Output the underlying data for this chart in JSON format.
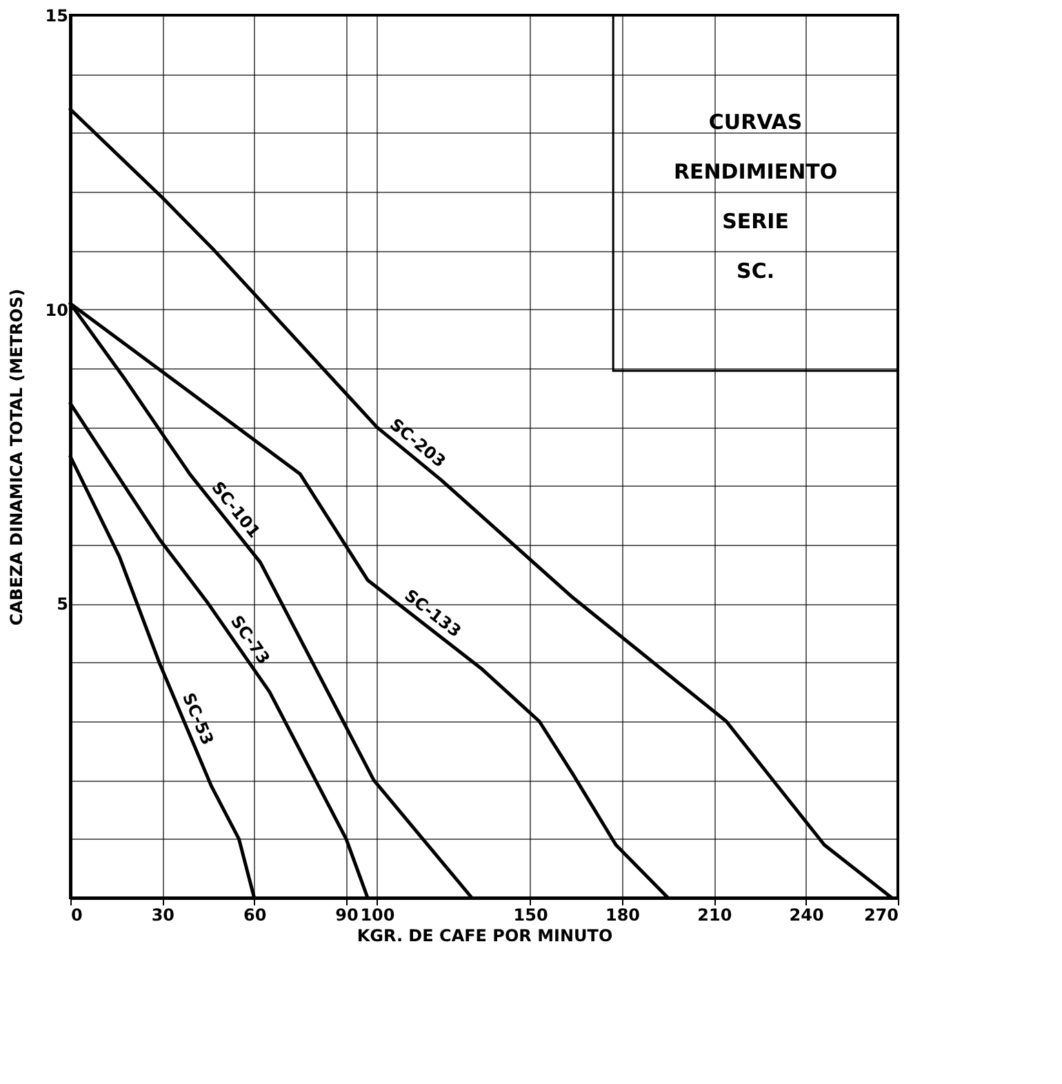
{
  "chart_data": {
    "type": "line",
    "title": [
      "CURVAS",
      "RENDIMIENTO",
      "SERIE",
      "SC."
    ],
    "xlabel": "KGR. DE CAFE POR MINUTO",
    "ylabel": "CABEZA DINAMICA TOTAL (METROS)",
    "xlim": [
      0,
      270
    ],
    "xticks": [
      0,
      30,
      60,
      90,
      100,
      150,
      180,
      210,
      240,
      270
    ],
    "ylim": [
      0,
      15
    ],
    "yticks": [
      {
        "value": 0,
        "label": null
      },
      {
        "value": 1,
        "label": null
      },
      {
        "value": 2,
        "label": null
      },
      {
        "value": 3,
        "label": null
      },
      {
        "value": 4,
        "label": null
      },
      5,
      {
        "value": 6,
        "label": null
      },
      {
        "value": 7,
        "label": null
      },
      {
        "value": 8,
        "label": null
      },
      {
        "value": 9,
        "label": null
      },
      10,
      {
        "value": 11,
        "label": null
      },
      {
        "value": 12,
        "label": null
      },
      {
        "value": 13,
        "label": null
      },
      {
        "value": 14,
        "label": null
      },
      15
    ],
    "grid": true,
    "legend": false,
    "marker": "none",
    "line_style": "solid",
    "series": [
      {
        "name": "SC-203",
        "color": "#000000",
        "x": [
          0,
          30,
          47,
          100,
          121,
          164,
          214,
          246,
          268
        ],
        "values": [
          13.4,
          11.9,
          11.0,
          8.0,
          7.1,
          5.1,
          3.0,
          0.9,
          0
        ]
      },
      {
        "name": "SC-133",
        "color": "#000000",
        "x": [
          0,
          44,
          75,
          97,
          134,
          153,
          164,
          178,
          195
        ],
        "values": [
          10.1,
          8.4,
          7.2,
          5.4,
          3.9,
          3.0,
          2.1,
          0.9,
          0
        ]
      },
      {
        "name": "SC-101",
        "color": "#000000",
        "x": [
          0,
          18,
          39,
          62,
          89,
          99,
          131
        ],
        "values": [
          10.1,
          8.8,
          7.2,
          5.7,
          3.0,
          2.0,
          0
        ]
      },
      {
        "name": "SC-73",
        "color": "#000000",
        "x": [
          0,
          29,
          45,
          65,
          90,
          97
        ],
        "values": [
          8.4,
          6.1,
          5.0,
          3.5,
          1.0,
          0
        ]
      },
      {
        "name": "SC-53",
        "color": "#000000",
        "x": [
          0,
          16,
          29,
          46,
          55,
          60
        ],
        "values": [
          7.5,
          5.8,
          4.0,
          1.9,
          1.0,
          0
        ]
      }
    ]
  }
}
